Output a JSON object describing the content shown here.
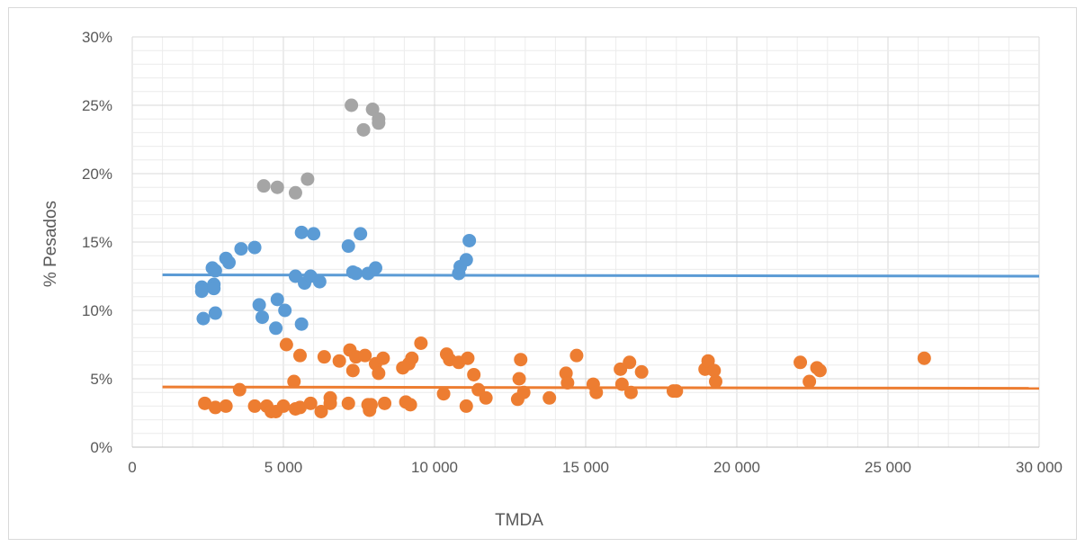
{
  "chart_data": {
    "type": "scatter",
    "title": "",
    "xlabel": "TMDA",
    "ylabel": "% Pesados",
    "xlim": [
      0,
      30000
    ],
    "ylim": [
      0,
      0.3
    ],
    "x_ticks": [
      0,
      5000,
      10000,
      15000,
      20000,
      25000,
      30000
    ],
    "x_tick_labels": [
      "0",
      "5 000",
      "10 000",
      "15 000",
      "20 000",
      "25 000",
      "30 000"
    ],
    "y_ticks": [
      0,
      0.05,
      0.1,
      0.15,
      0.2,
      0.25,
      0.3
    ],
    "y_tick_labels": [
      "0%",
      "5%",
      "10%",
      "15%",
      "20%",
      "25%",
      "30%"
    ],
    "grid": true,
    "legend": "none",
    "series": [
      {
        "color": "#5b9bd5",
        "points": [
          [
            2300,
            0.117
          ],
          [
            2300,
            0.114
          ],
          [
            2350,
            0.094
          ],
          [
            2650,
            0.131
          ],
          [
            2700,
            0.119
          ],
          [
            2700,
            0.116
          ],
          [
            2750,
            0.129
          ],
          [
            2750,
            0.098
          ],
          [
            3100,
            0.138
          ],
          [
            3200,
            0.135
          ],
          [
            3600,
            0.145
          ],
          [
            4050,
            0.146
          ],
          [
            4200,
            0.104
          ],
          [
            4300,
            0.095
          ],
          [
            4800,
            0.108
          ],
          [
            4750,
            0.087
          ],
          [
            5050,
            0.1
          ],
          [
            5400,
            0.125
          ],
          [
            5600,
            0.157
          ],
          [
            5600,
            0.09
          ],
          [
            5700,
            0.12
          ],
          [
            5900,
            0.125
          ],
          [
            6000,
            0.156
          ],
          [
            6200,
            0.121
          ],
          [
            7150,
            0.147
          ],
          [
            7300,
            0.128
          ],
          [
            7400,
            0.127
          ],
          [
            7550,
            0.156
          ],
          [
            7800,
            0.127
          ],
          [
            8050,
            0.131
          ],
          [
            10800,
            0.127
          ],
          [
            10850,
            0.132
          ],
          [
            11050,
            0.137
          ],
          [
            11150,
            0.151
          ]
        ],
        "trend": {
          "x": [
            1000,
            30000
          ],
          "y": [
            0.126,
            0.125
          ]
        }
      },
      {
        "color": "#ed7d31",
        "points": [
          [
            2400,
            0.032
          ],
          [
            2750,
            0.029
          ],
          [
            3100,
            0.03
          ],
          [
            3550,
            0.042
          ],
          [
            4050,
            0.03
          ],
          [
            4450,
            0.03
          ],
          [
            4600,
            0.026
          ],
          [
            4750,
            0.026
          ],
          [
            5000,
            0.03
          ],
          [
            5100,
            0.075
          ],
          [
            5350,
            0.048
          ],
          [
            5400,
            0.028
          ],
          [
            5550,
            0.067
          ],
          [
            5550,
            0.029
          ],
          [
            5900,
            0.032
          ],
          [
            6250,
            0.026
          ],
          [
            6350,
            0.066
          ],
          [
            6550,
            0.036
          ],
          [
            6550,
            0.032
          ],
          [
            6850,
            0.063
          ],
          [
            7150,
            0.032
          ],
          [
            7200,
            0.071
          ],
          [
            7300,
            0.056
          ],
          [
            7400,
            0.066
          ],
          [
            7700,
            0.067
          ],
          [
            7800,
            0.031
          ],
          [
            7850,
            0.027
          ],
          [
            7900,
            0.031
          ],
          [
            8050,
            0.061
          ],
          [
            8150,
            0.054
          ],
          [
            8300,
            0.065
          ],
          [
            8350,
            0.032
          ],
          [
            8950,
            0.058
          ],
          [
            9050,
            0.033
          ],
          [
            9150,
            0.061
          ],
          [
            9200,
            0.031
          ],
          [
            9250,
            0.065
          ],
          [
            9550,
            0.076
          ],
          [
            10300,
            0.039
          ],
          [
            10400,
            0.068
          ],
          [
            10500,
            0.064
          ],
          [
            10800,
            0.062
          ],
          [
            11050,
            0.03
          ],
          [
            11100,
            0.065
          ],
          [
            11300,
            0.053
          ],
          [
            11450,
            0.042
          ],
          [
            11700,
            0.036
          ],
          [
            12750,
            0.035
          ],
          [
            12800,
            0.05
          ],
          [
            12850,
            0.064
          ],
          [
            12950,
            0.04
          ],
          [
            13800,
            0.036
          ],
          [
            14350,
            0.054
          ],
          [
            14400,
            0.047
          ],
          [
            14700,
            0.067
          ],
          [
            15250,
            0.046
          ],
          [
            15350,
            0.04
          ],
          [
            16150,
            0.057
          ],
          [
            16200,
            0.046
          ],
          [
            16450,
            0.062
          ],
          [
            16500,
            0.04
          ],
          [
            16850,
            0.055
          ],
          [
            17900,
            0.041
          ],
          [
            18000,
            0.041
          ],
          [
            18950,
            0.057
          ],
          [
            19050,
            0.063
          ],
          [
            19250,
            0.056
          ],
          [
            19300,
            0.048
          ],
          [
            22100,
            0.062
          ],
          [
            22400,
            0.048
          ],
          [
            22650,
            0.058
          ],
          [
            22750,
            0.056
          ],
          [
            26200,
            0.065
          ]
        ],
        "trend": {
          "x": [
            1000,
            30000
          ],
          "y": [
            0.044,
            0.043
          ]
        }
      },
      {
        "color": "#a5a5a5",
        "points": [
          [
            4350,
            0.191
          ],
          [
            4800,
            0.19
          ],
          [
            5400,
            0.186
          ],
          [
            5800,
            0.196
          ],
          [
            7250,
            0.25
          ],
          [
            7650,
            0.232
          ],
          [
            7950,
            0.247
          ],
          [
            8150,
            0.24
          ],
          [
            8150,
            0.237
          ]
        ]
      }
    ]
  }
}
